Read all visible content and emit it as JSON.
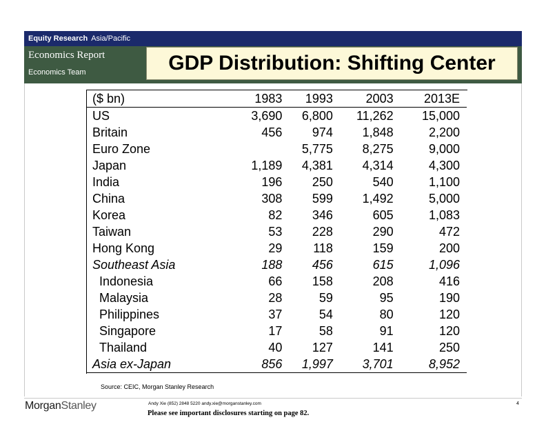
{
  "header": {
    "department": "Equity Research",
    "region": "Asia/Pacific",
    "report_type": "Economics Report",
    "team": "Economics Team",
    "title": "GDP Distribution: Shifting Center"
  },
  "table": {
    "columns": [
      "($ bn)",
      "1983",
      "1993",
      "2003",
      "2013E"
    ],
    "rows": [
      {
        "label": "US",
        "values": [
          "3,690",
          "6,800",
          "11,262",
          "15,000"
        ]
      },
      {
        "label": "Britain",
        "values": [
          "456",
          "974",
          "1,848",
          "2,200"
        ]
      },
      {
        "label": "Euro Zone",
        "values": [
          "",
          "5,775",
          "8,275",
          "9,000"
        ]
      },
      {
        "label": "Japan",
        "values": [
          "1,189",
          "4,381",
          "4,314",
          "4,300"
        ]
      },
      {
        "label": "India",
        "values": [
          "196",
          "250",
          "540",
          "1,100"
        ]
      },
      {
        "label": "China",
        "values": [
          "308",
          "599",
          "1,492",
          "5,000"
        ]
      },
      {
        "label": "Korea",
        "values": [
          "82",
          "346",
          "605",
          "1,083"
        ]
      },
      {
        "label": "Taiwan",
        "values": [
          "53",
          "228",
          "290",
          "472"
        ]
      },
      {
        "label": "Hong Kong",
        "values": [
          "29",
          "118",
          "159",
          "200"
        ]
      },
      {
        "label": "Southeast Asia",
        "values": [
          "188",
          "456",
          "615",
          "1,096"
        ]
      },
      {
        "label": "Indonesia",
        "values": [
          "66",
          "158",
          "208",
          "416"
        ]
      },
      {
        "label": "Malaysia",
        "values": [
          "28",
          "59",
          "95",
          "190"
        ]
      },
      {
        "label": "Philippines",
        "values": [
          "37",
          "54",
          "80",
          "120"
        ]
      },
      {
        "label": "Singapore",
        "values": [
          "17",
          "58",
          "91",
          "120"
        ]
      },
      {
        "label": "Thailand",
        "values": [
          "40",
          "127",
          "141",
          "250"
        ]
      },
      {
        "label": "Asia ex-Japan",
        "values": [
          "856",
          "1,997",
          "3,701",
          "8,952"
        ]
      }
    ]
  },
  "source": "Source: CEIC, Morgan Stanley Research",
  "footer": {
    "logo_part1": "Morgan",
    "logo_part2": "Stanley",
    "contact": "Andy Xie (852) 2848 5220  andy.xie@morganstanley.com",
    "disclosure": "Please see important disclosures starting on page 82.",
    "page_number": "4"
  },
  "colors": {
    "top_bar": "#1b2a6b",
    "header_band": "#3e5a42",
    "title_box": "#fdf8d8"
  }
}
